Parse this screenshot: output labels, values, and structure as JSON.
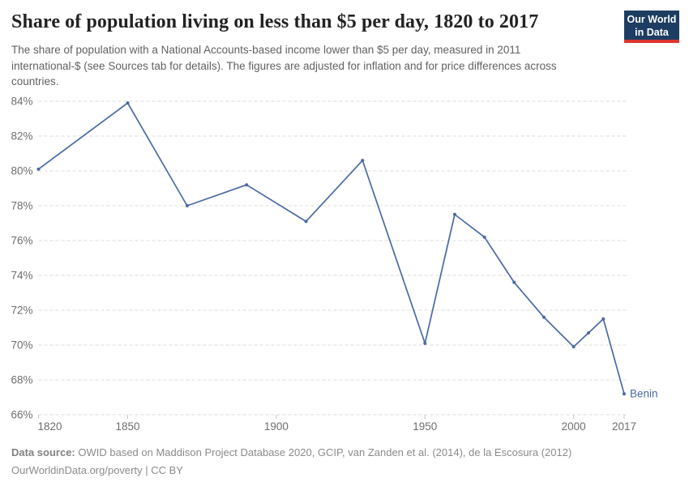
{
  "header": {
    "title": "Share of population living on less than $5 per day, 1820 to 2017",
    "subtitle": "The share of population with a National Accounts-based income lower than $5 per day, measured in 2011 international-$ (see Sources tab for details). The figures are adjusted for inflation and for price differences across countries.",
    "logo": {
      "line1": "Our World",
      "line2": "in Data"
    }
  },
  "chart_data": {
    "type": "line",
    "title": "Share of population living on less than $5 per day, 1820 to 2017",
    "xlabel": "",
    "ylabel": "",
    "xlim": [
      1820,
      2017
    ],
    "ylim": [
      66,
      84
    ],
    "grid": "dashed-horizontal",
    "legend_position": "end-of-line-label",
    "x_ticks": [
      {
        "year": 1820,
        "label": "1820"
      },
      {
        "year": 1850,
        "label": "1850"
      },
      {
        "year": 1900,
        "label": "1900"
      },
      {
        "year": 1950,
        "label": "1950"
      },
      {
        "year": 2000,
        "label": "2000"
      },
      {
        "year": 2017,
        "label": "2017"
      }
    ],
    "y_ticks": [
      84,
      82,
      80,
      78,
      76,
      74,
      72,
      70,
      68,
      66
    ],
    "y_tick_suffix": "%",
    "series": [
      {
        "name": "Benin",
        "color": "#4a69a5",
        "points": [
          {
            "year": 1820,
            "value": 80.1
          },
          {
            "year": 1850,
            "value": 83.9
          },
          {
            "year": 1870,
            "value": 78.0
          },
          {
            "year": 1890,
            "value": 79.2
          },
          {
            "year": 1910,
            "value": 77.1
          },
          {
            "year": 1929,
            "value": 80.6
          },
          {
            "year": 1950,
            "value": 70.1
          },
          {
            "year": 1960,
            "value": 77.5
          },
          {
            "year": 1970,
            "value": 76.2
          },
          {
            "year": 1980,
            "value": 73.6
          },
          {
            "year": 1990,
            "value": 71.6
          },
          {
            "year": 2000,
            "value": 69.9
          },
          {
            "year": 2005,
            "value": 70.7
          },
          {
            "year": 2010,
            "value": 71.5
          },
          {
            "year": 2017,
            "value": 67.2
          }
        ]
      }
    ]
  },
  "footer": {
    "source_label": "Data source:",
    "source_text": " OWID based on Maddison Project Database 2020, GCIP, van Zanden et al. (2014), de la Escosura (2012)",
    "link_text": "OurWorldinData.org/poverty | CC BY"
  },
  "colors": {
    "line": "#4a69a5",
    "grid": "#dcdcdc",
    "tick_mark": "#c4c4c4",
    "axis_text": "#6e6e6e"
  }
}
